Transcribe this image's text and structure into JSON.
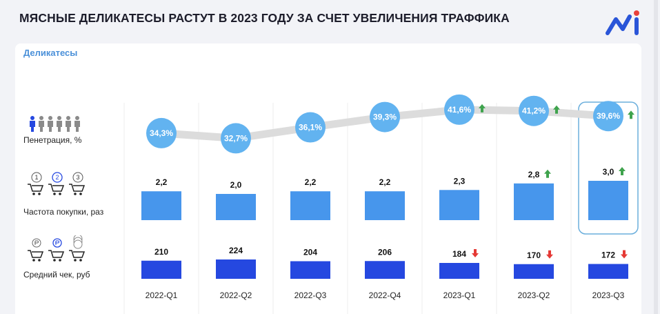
{
  "page": {
    "title": "МЯСНЫЕ ДЕЛИКАТЕСЫ РАСТУТ В 2023 ГОДУ ЗА СЧЕТ УВЕЛИЧЕНИЯ ТРАФФИКА",
    "card_subtitle": "Деликатесы",
    "colors": {
      "accent_blue": "#4a90d9",
      "circle_blue": "#62b3f0",
      "bar_light": "#4796ec",
      "bar_dark": "#2548e0",
      "trend_line": "#dcdcdc",
      "arrow_up": "#3fa34d",
      "arrow_down": "#e53935",
      "highlight_border": "#6aaedc"
    },
    "logo": "brand-logo-icon"
  },
  "rows": {
    "penetration_label": "Пенетрация, %",
    "frequency_label": "Частота покупки, раз",
    "avg_check_label": "Средний чек, руб",
    "penetration_icon": "people-icon",
    "frequency_icon": "cart-numbered-icon",
    "avg_check_icon": "cart-coins-icon",
    "frequency_icon_numbers": [
      "1",
      "2",
      "3"
    ]
  },
  "chart_data": {
    "type": "bar",
    "categories": [
      "2022-Q1",
      "2022-Q2",
      "2022-Q3",
      "2022-Q4",
      "2023-Q1",
      "2023-Q2",
      "2023-Q3"
    ],
    "highlighted_category": "2023-Q3",
    "series": [
      {
        "name": "Пенетрация, %",
        "chart_type": "line",
        "values": [
          34.3,
          32.7,
          36.1,
          39.3,
          41.6,
          41.2,
          39.6
        ],
        "labels": [
          "34,3%",
          "32,7%",
          "36,1%",
          "39,3%",
          "41,6%",
          "41,2%",
          "39,6%"
        ],
        "trend": [
          "",
          "",
          "",
          "",
          "up",
          "up",
          "up"
        ]
      },
      {
        "name": "Частота покупки, раз",
        "chart_type": "bar",
        "values": [
          2.2,
          2.0,
          2.2,
          2.2,
          2.3,
          2.8,
          3.0
        ],
        "labels": [
          "2,2",
          "2,0",
          "2,2",
          "2,2",
          "2,3",
          "2,8",
          "3,0"
        ],
        "trend": [
          "",
          "",
          "",
          "",
          "",
          "up",
          "up"
        ]
      },
      {
        "name": "Средний чек, руб",
        "chart_type": "bar",
        "values": [
          210,
          224,
          204,
          206,
          184,
          170,
          172
        ],
        "labels": [
          "210",
          "224",
          "204",
          "206",
          "184",
          "170",
          "172"
        ],
        "trend": [
          "",
          "",
          "",
          "",
          "down",
          "down",
          "down"
        ]
      }
    ],
    "grid": true
  }
}
